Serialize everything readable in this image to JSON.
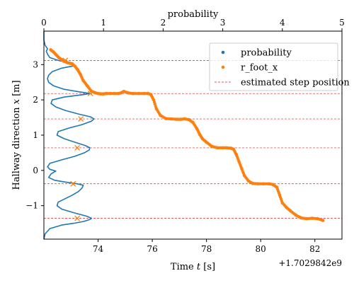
{
  "chart_data": {
    "type": "scatter",
    "title": "",
    "xlabel": "Time $t$ [s]",
    "xlabel_display": [
      "Time ",
      "t",
      " [s]"
    ],
    "ylabel_display": [
      "Hallway direction ",
      "x",
      " [m]"
    ],
    "x_offset_label": "+1.7029842e9",
    "xlim": [
      72.0,
      83.0
    ],
    "ylim": [
      -1.95,
      3.95
    ],
    "x_ticks": [
      74,
      76,
      78,
      80,
      82
    ],
    "y_ticks": [
      -1,
      0,
      1,
      2,
      3
    ],
    "top_axis": {
      "label": "probability",
      "lim": [
        0,
        5.0
      ],
      "ticks": [
        0,
        1,
        2,
        3,
        4,
        5
      ]
    },
    "legend": {
      "placement": "top-right",
      "entries": [
        {
          "label": "probability",
          "kind": "dot",
          "color": "#1f77b4"
        },
        {
          "label": "r_foot_x",
          "kind": "dot",
          "color": "#ff7f0e"
        },
        {
          "label": "estimated step position",
          "kind": "dashed-line",
          "color": "#d62728"
        }
      ]
    },
    "colors": {
      "probability": "#1f77b4",
      "r_foot_x": "#ff7f0e",
      "steps": "#d62728"
    },
    "step_positions": [
      3.12,
      2.18,
      1.46,
      0.64,
      -0.38,
      -1.36
    ],
    "probability_series": {
      "name": "probability",
      "y": [
        -1.95,
        -1.8,
        -1.65,
        -1.55,
        -1.5,
        -1.45,
        -1.4,
        -1.36,
        -1.3,
        -1.2,
        -1.1,
        -1.0,
        -0.9,
        -0.8,
        -0.7,
        -0.6,
        -0.5,
        -0.42,
        -0.38,
        -0.33,
        -0.28,
        -0.2,
        -0.1,
        -0.02,
        0.03,
        0.1,
        0.2,
        0.3,
        0.4,
        0.5,
        0.58,
        0.64,
        0.7,
        0.8,
        0.9,
        1.0,
        1.1,
        1.2,
        1.3,
        1.4,
        1.46,
        1.52,
        1.6,
        1.7,
        1.8,
        1.9,
        2.0,
        2.08,
        2.14,
        2.18,
        2.22,
        2.3,
        2.4,
        2.5,
        2.6,
        2.7,
        2.8,
        2.9,
        2.97,
        3.05,
        3.12,
        3.2,
        3.3,
        3.38,
        3.45,
        3.55,
        3.7,
        3.95
      ],
      "probability": [
        0.0,
        0.02,
        0.1,
        0.3,
        0.5,
        0.66,
        0.76,
        0.8,
        0.72,
        0.5,
        0.3,
        0.22,
        0.24,
        0.36,
        0.48,
        0.58,
        0.64,
        0.66,
        0.56,
        0.36,
        0.18,
        0.08,
        0.12,
        0.2,
        0.1,
        0.06,
        0.1,
        0.3,
        0.52,
        0.68,
        0.76,
        0.77,
        0.7,
        0.52,
        0.34,
        0.22,
        0.24,
        0.42,
        0.64,
        0.8,
        0.84,
        0.78,
        0.58,
        0.36,
        0.2,
        0.12,
        0.14,
        0.34,
        0.62,
        0.78,
        0.62,
        0.34,
        0.16,
        0.08,
        0.06,
        0.08,
        0.14,
        0.3,
        0.52,
        0.42,
        0.24,
        0.1,
        0.06,
        0.04,
        0.06,
        0.02,
        0.0,
        0.0
      ]
    },
    "step_markers": [
      {
        "y": 3.12,
        "probability": 0.36
      },
      {
        "y": 2.18,
        "probability": 0.78
      },
      {
        "y": 1.46,
        "probability": 0.62
      },
      {
        "y": 0.64,
        "probability": 0.56
      },
      {
        "y": -0.38,
        "probability": 0.49
      },
      {
        "y": -1.36,
        "probability": 0.56
      }
    ],
    "r_foot_x_series": {
      "name": "r_foot_x",
      "x": [
        72.25,
        72.35,
        72.45,
        72.55,
        72.65,
        72.75,
        72.85,
        72.95,
        73.05,
        73.15,
        73.25,
        73.35,
        73.45,
        73.6,
        73.75,
        73.9,
        74.0,
        74.1,
        74.2,
        74.3,
        74.45,
        74.6,
        74.75,
        74.85,
        74.95,
        75.1,
        75.3,
        75.5,
        75.7,
        75.85,
        75.95,
        76.05,
        76.15,
        76.3,
        76.5,
        76.7,
        76.9,
        77.05,
        77.2,
        77.35,
        77.5,
        77.65,
        77.75,
        77.85,
        78.0,
        78.2,
        78.4,
        78.6,
        78.75,
        78.9,
        79.0,
        79.1,
        79.2,
        79.3,
        79.4,
        79.55,
        79.7,
        79.9,
        80.1,
        80.3,
        80.45,
        80.6,
        80.7,
        80.8,
        80.95,
        81.1,
        81.3,
        81.5,
        81.7,
        81.9,
        82.1,
        82.3
      ],
      "y": [
        3.42,
        3.36,
        3.28,
        3.2,
        3.14,
        3.1,
        3.06,
        3.04,
        3.02,
        2.95,
        2.85,
        2.72,
        2.55,
        2.4,
        2.25,
        2.2,
        2.18,
        2.17,
        2.17,
        2.18,
        2.18,
        2.18,
        2.18,
        2.2,
        2.24,
        2.2,
        2.18,
        2.18,
        2.18,
        2.18,
        2.15,
        2.0,
        1.75,
        1.56,
        1.47,
        1.46,
        1.45,
        1.45,
        1.46,
        1.44,
        1.36,
        1.18,
        1.02,
        0.9,
        0.8,
        0.68,
        0.64,
        0.64,
        0.64,
        0.63,
        0.6,
        0.45,
        0.25,
        0.05,
        -0.15,
        -0.3,
        -0.37,
        -0.38,
        -0.38,
        -0.38,
        -0.4,
        -0.48,
        -0.7,
        -0.92,
        -1.05,
        -1.15,
        -1.27,
        -1.35,
        -1.37,
        -1.36,
        -1.37,
        -1.42
      ]
    }
  }
}
